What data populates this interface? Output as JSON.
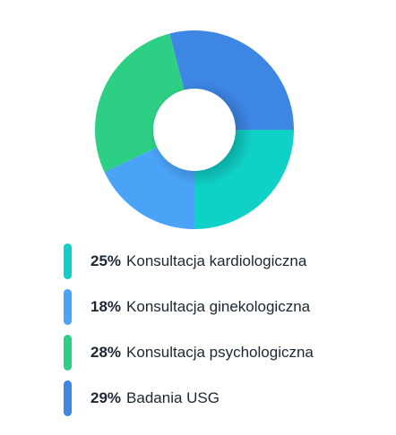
{
  "chart_data": {
    "type": "pie",
    "donut": true,
    "slices": [
      {
        "label": "Konsultacja kardiologiczna",
        "value": 25,
        "value_label": "25%",
        "color": "#0fd1c7"
      },
      {
        "label": "Konsultacja ginekologiczna",
        "value": 18,
        "value_label": "18%",
        "color": "#4aa3f7"
      },
      {
        "label": "Konsultacja psychologiczna",
        "value": 28,
        "value_label": "28%",
        "color": "#2dcf85"
      },
      {
        "label": "Badania USG",
        "value": 29,
        "value_label": "29%",
        "color": "#3d86e4"
      }
    ],
    "legend": "bottom"
  }
}
